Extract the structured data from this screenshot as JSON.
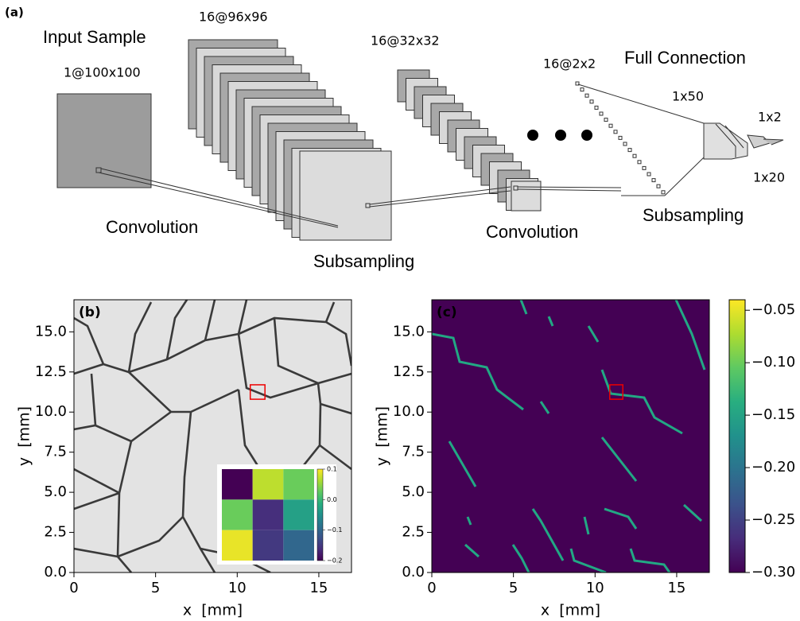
{
  "diagram": {
    "panel_label": "(a)",
    "input_title": "Input Sample",
    "input_size": "1@100x100",
    "conv1_size": "16@96x96",
    "sub1_size": "16@32x32",
    "conv2_size": "16@2x2",
    "fc_title": "Full Connection",
    "fc1_size": "1x50",
    "fc_out_size": "1x2",
    "fc2_size": "1x20",
    "step1": "Convolution",
    "step2": "Subsampling",
    "step3": "Convolution",
    "step4": "Subsampling"
  },
  "chart_data": [
    {
      "type": "image",
      "panel_label": "(b)",
      "xlabel": "x  [mm]",
      "ylabel": "y  [mm]",
      "xlim": [
        0,
        17
      ],
      "ylim": [
        0,
        17
      ],
      "xticks": [
        0,
        5,
        10,
        15
      ],
      "yticks": [
        {
          "value": 0,
          "label": "0.0"
        },
        {
          "value": 2.5,
          "label": "2.5"
        },
        {
          "value": 5,
          "label": "5.0"
        },
        {
          "value": 7.5,
          "label": "7.5"
        },
        {
          "value": 10,
          "label": "10.0"
        },
        {
          "value": 12.5,
          "label": "12.5"
        },
        {
          "value": 15,
          "label": "15.0"
        }
      ],
      "highlight": {
        "x": [
          10.8,
          11.7
        ],
        "y": [
          10.8,
          11.7
        ]
      },
      "inset": {
        "type": "heatmap",
        "values": [
          [
            -0.2,
            0.07,
            0.03
          ],
          [
            0.03,
            -0.16,
            -0.03
          ],
          [
            0.09,
            -0.15,
            -0.1
          ]
        ],
        "clim": [
          -0.2,
          0.1
        ],
        "cticks": [
          0.1,
          {
            "value": 0,
            "label": "0.0"
          },
          {
            "value": -0.1,
            "label": "−0.1"
          },
          {
            "value": -0.2,
            "label": "−0.2"
          }
        ]
      }
    },
    {
      "type": "image",
      "panel_label": "(c)",
      "xlabel": "x  [mm]",
      "ylabel": "y  [mm]",
      "xlim": [
        0,
        17
      ],
      "ylim": [
        0,
        17
      ],
      "xticks": [
        0,
        5,
        10,
        15
      ],
      "yticks": [
        {
          "value": 0,
          "label": "0.0"
        },
        {
          "value": 2.5,
          "label": "2.5"
        },
        {
          "value": 5,
          "label": "5.0"
        },
        {
          "value": 7.5,
          "label": "7.5"
        },
        {
          "value": 10,
          "label": "10.0"
        },
        {
          "value": 12.5,
          "label": "12.5"
        },
        {
          "value": 15,
          "label": "15.0"
        }
      ],
      "highlight": {
        "x": [
          10.9,
          11.7
        ],
        "y": [
          10.8,
          11.7
        ]
      },
      "colorbar": {
        "clim": [
          -0.3,
          -0.04
        ],
        "cticks": [
          {
            "value": -0.05,
            "label": "−0.05"
          },
          {
            "value": -0.1,
            "label": "−0.10"
          },
          {
            "value": -0.15,
            "label": "−0.15"
          },
          {
            "value": -0.2,
            "label": "−0.20"
          },
          {
            "value": -0.25,
            "label": "−0.25"
          },
          {
            "value": -0.3,
            "label": "−0.30"
          }
        ]
      }
    }
  ]
}
